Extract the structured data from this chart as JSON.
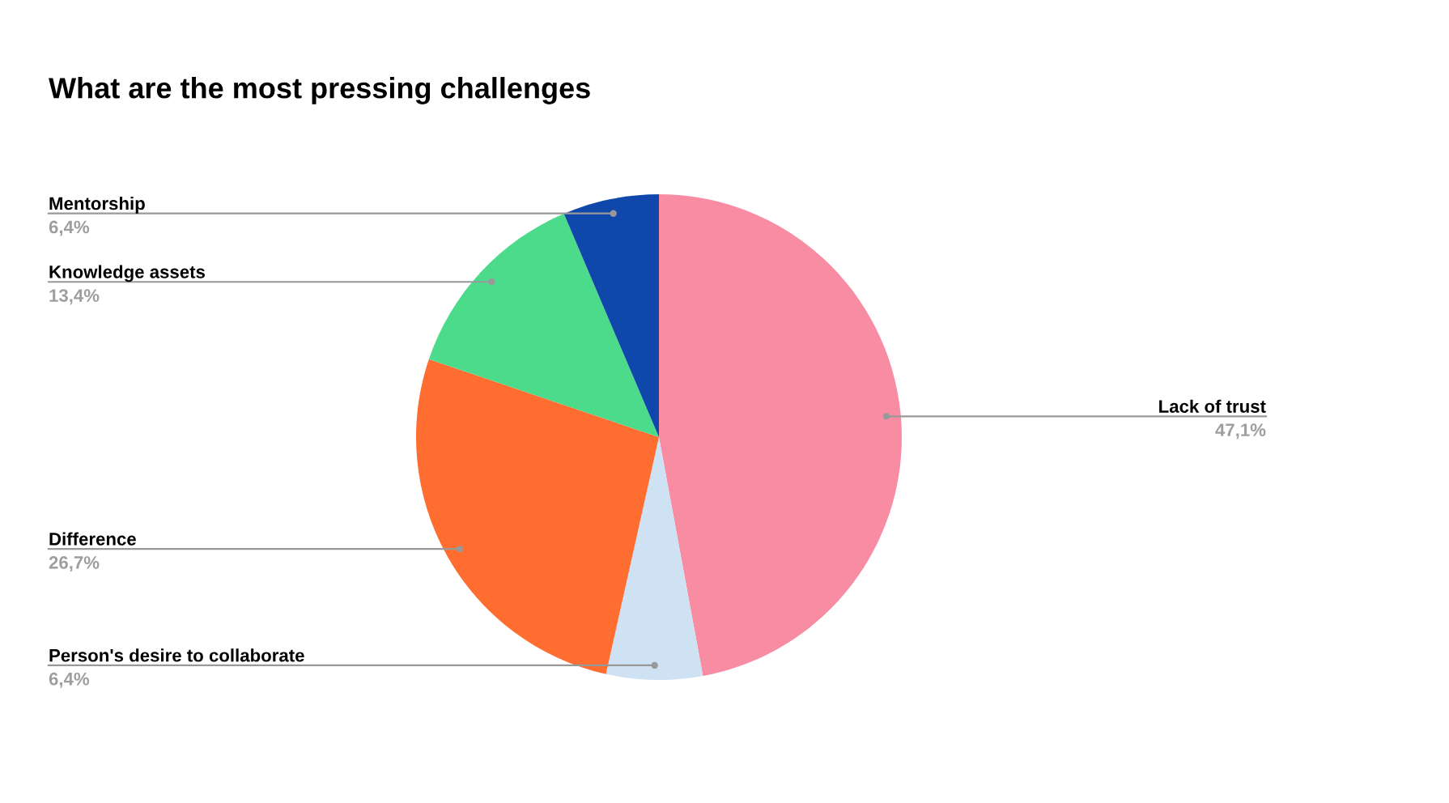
{
  "chart_data": {
    "type": "pie",
    "title": "What are the most pressing challenges",
    "categories": [
      "Lack of trust",
      "Person's desire to collaborate",
      "Difference",
      "Knowledge assets",
      "Mentorship"
    ],
    "values": [
      47.1,
      6.4,
      26.7,
      13.4,
      6.4
    ],
    "value_labels": [
      "47,1%",
      "6,4%",
      "26,7%",
      "13,4%",
      "6,4%"
    ],
    "colors": [
      "#f88ca3",
      "#cfe2f3",
      "#ff6d31",
      "#4cdb8a",
      "#0f47ab"
    ]
  }
}
